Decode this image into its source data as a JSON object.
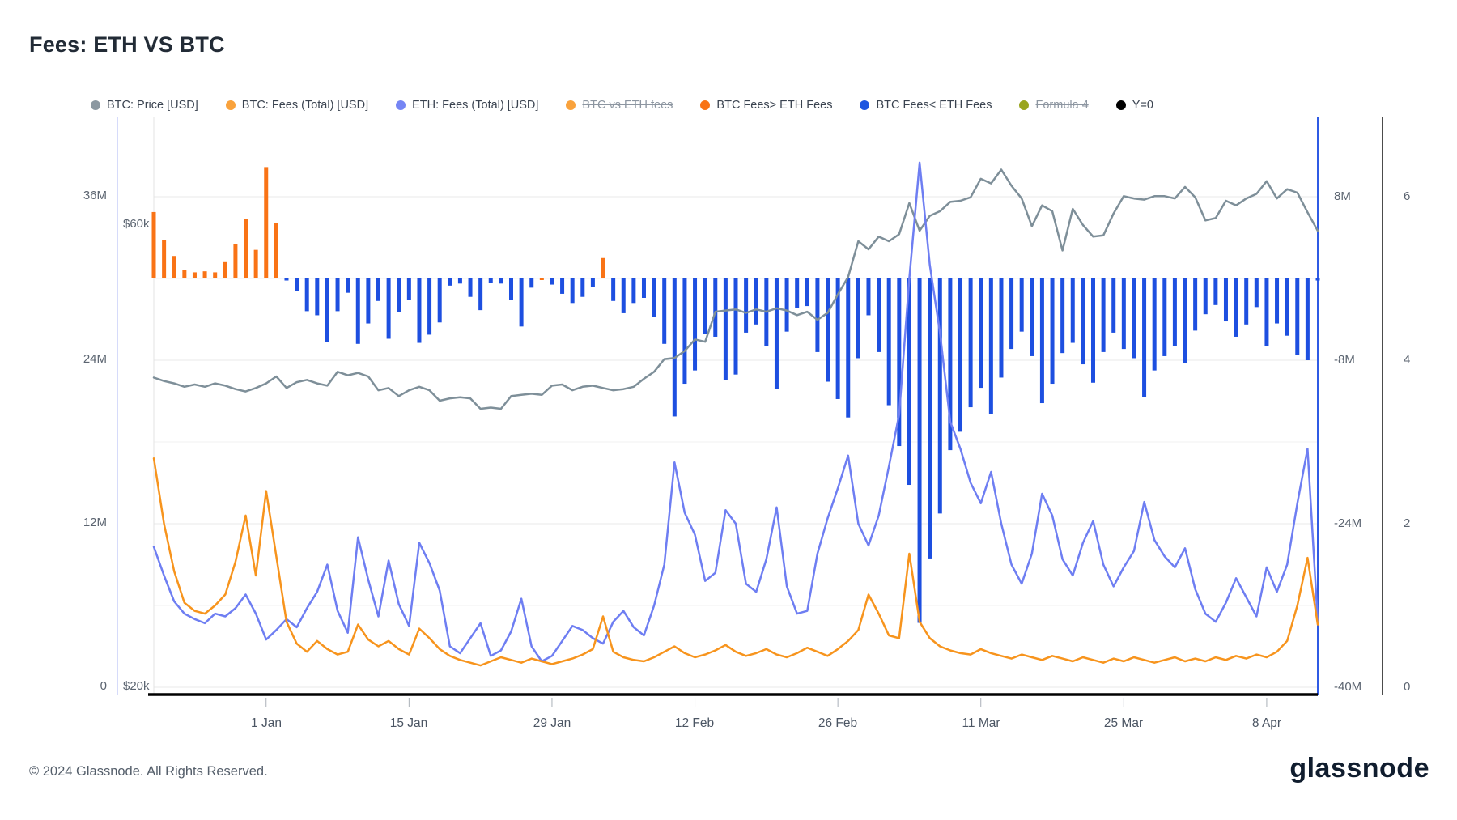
{
  "header": {
    "title": "Fees: ETH VS BTC"
  },
  "legend": [
    {
      "label": "BTC: Price [USD]",
      "color": "#8b98a1",
      "struck": false
    },
    {
      "label": "BTC: Fees (Total) [USD]",
      "color": "#f9a23c",
      "struck": false
    },
    {
      "label": "ETH: Fees (Total) [USD]",
      "color": "#7585f4",
      "struck": false
    },
    {
      "label": "BTC vs ETH fees",
      "color": "#f9a23c",
      "struck": true
    },
    {
      "label": "BTC Fees> ETH Fees",
      "color": "#f97316",
      "struck": false
    },
    {
      "label": "BTC Fees< ETH Fees",
      "color": "#1d55e0",
      "struck": false
    },
    {
      "label": "Formula 4",
      "color": "#9aa51f",
      "struck": true
    },
    {
      "label": "Y=0",
      "color": "#000000",
      "struck": false
    }
  ],
  "axes": {
    "left_fees": [
      "36M",
      "24M",
      "12M",
      "0"
    ],
    "left_price": [
      "$60k",
      "$20k"
    ],
    "right_m": [
      "8M",
      "-8M",
      "-24M",
      "-40M"
    ],
    "right_count": [
      "6",
      "4",
      "2",
      "0"
    ],
    "x_ticks": [
      "1 Jan",
      "15 Jan",
      "29 Jan",
      "12 Feb",
      "26 Feb",
      "11 Mar",
      "25 Mar",
      "8 Apr"
    ]
  },
  "footer": {
    "copyright": "© 2024 Glassnode. All Rights Reserved.",
    "brand": "glassnode"
  },
  "chart_data": {
    "type": "mixed",
    "title": "Fees: ETH VS BTC",
    "grid": true,
    "legend_position": "top",
    "axis_ranges": {
      "left_fees_usd_m": [
        0,
        42
      ],
      "left_price_usd_k": [
        20,
        69
      ],
      "right_diff_usd_m": [
        -40,
        16
      ],
      "right_count": [
        0,
        6
      ]
    },
    "series_meta": [
      {
        "name": "BTC: Price [USD]",
        "type": "line",
        "axis": "left_price_usd_k",
        "color": "#7e8f99"
      },
      {
        "name": "BTC: Fees (Total) [USD]",
        "type": "line",
        "axis": "left_fees_usd_m",
        "color": "#f7941d"
      },
      {
        "name": "ETH: Fees (Total) [USD]",
        "type": "line",
        "axis": "left_fees_usd_m",
        "color": "#6e7ef2"
      },
      {
        "name": "BTC Fees> ETH Fees",
        "type": "bar",
        "axis": "right_diff_usd_m",
        "color": "#f97316",
        "rule": "btc_fees - eth_fees when positive"
      },
      {
        "name": "BTC Fees< ETH Fees",
        "type": "bar",
        "axis": "right_diff_usd_m",
        "color": "#1d4fe0",
        "rule": "btc_fees - eth_fees when negative"
      },
      {
        "name": "Y=0",
        "type": "hline",
        "value": 0,
        "color": "#000000"
      }
    ],
    "dates": [
      "21 Dec",
      "22 Dec",
      "23 Dec",
      "24 Dec",
      "25 Dec",
      "26 Dec",
      "27 Dec",
      "28 Dec",
      "29 Dec",
      "30 Dec",
      "31 Dec",
      "1 Jan",
      "2 Jan",
      "3 Jan",
      "4 Jan",
      "5 Jan",
      "6 Jan",
      "7 Jan",
      "8 Jan",
      "9 Jan",
      "10 Jan",
      "11 Jan",
      "12 Jan",
      "13 Jan",
      "14 Jan",
      "15 Jan",
      "16 Jan",
      "17 Jan",
      "18 Jan",
      "19 Jan",
      "20 Jan",
      "21 Jan",
      "22 Jan",
      "23 Jan",
      "24 Jan",
      "25 Jan",
      "26 Jan",
      "27 Jan",
      "28 Jan",
      "29 Jan",
      "30 Jan",
      "31 Jan",
      "1 Feb",
      "2 Feb",
      "3 Feb",
      "4 Feb",
      "5 Feb",
      "6 Feb",
      "7 Feb",
      "8 Feb",
      "9 Feb",
      "10 Feb",
      "11 Feb",
      "12 Feb",
      "13 Feb",
      "14 Feb",
      "15 Feb",
      "16 Feb",
      "17 Feb",
      "18 Feb",
      "19 Feb",
      "20 Feb",
      "21 Feb",
      "22 Feb",
      "23 Feb",
      "24 Feb",
      "25 Feb",
      "26 Feb",
      "27 Feb",
      "28 Feb",
      "29 Feb",
      "1 Mar",
      "2 Mar",
      "3 Mar",
      "4 Mar",
      "5 Mar",
      "6 Mar",
      "7 Mar",
      "8 Mar",
      "9 Mar",
      "10 Mar",
      "11 Mar",
      "12 Mar",
      "13 Mar",
      "14 Mar",
      "15 Mar",
      "16 Mar",
      "17 Mar",
      "18 Mar",
      "19 Mar",
      "20 Mar",
      "21 Mar",
      "22 Mar",
      "23 Mar",
      "24 Mar",
      "25 Mar",
      "26 Mar",
      "27 Mar",
      "28 Mar",
      "29 Mar",
      "30 Mar",
      "31 Mar",
      "1 Apr",
      "2 Apr",
      "3 Apr",
      "4 Apr",
      "5 Apr",
      "6 Apr",
      "7 Apr",
      "8 Apr",
      "9 Apr",
      "10 Apr",
      "11 Apr",
      "12 Apr",
      "13 Apr"
    ],
    "btc_price_usd_k": [
      46.8,
      46.5,
      46.3,
      46.0,
      46.2,
      46.0,
      46.3,
      46.1,
      45.8,
      45.6,
      45.9,
      46.3,
      46.9,
      45.9,
      46.4,
      46.6,
      46.3,
      46.1,
      47.3,
      47.0,
      47.2,
      46.9,
      45.7,
      45.9,
      45.2,
      45.7,
      46.0,
      45.7,
      44.8,
      45.0,
      45.1,
      45.0,
      44.1,
      44.2,
      44.1,
      45.2,
      45.3,
      45.4,
      45.3,
      46.1,
      46.2,
      45.7,
      46.0,
      46.1,
      45.9,
      45.7,
      45.8,
      46.0,
      46.7,
      47.3,
      48.4,
      48.5,
      49.1,
      50.1,
      49.9,
      52.5,
      52.6,
      52.7,
      52.4,
      52.7,
      52.5,
      52.8,
      52.6,
      52.2,
      52.5,
      51.8,
      52.4,
      54.0,
      55.5,
      58.6,
      57.9,
      59.0,
      58.6,
      59.2,
      61.9,
      59.5,
      60.8,
      61.2,
      62.0,
      62.1,
      62.4,
      64.0,
      63.6,
      64.8,
      63.4,
      62.3,
      59.9,
      61.7,
      61.2,
      57.8,
      61.4,
      60.0,
      59.0,
      59.1,
      61.0,
      62.5,
      62.3,
      62.2,
      62.5,
      62.5,
      62.3,
      63.3,
      62.4,
      60.4,
      60.6,
      62.1,
      61.7,
      62.3,
      62.7,
      63.8,
      62.3,
      63.1,
      62.8,
      61.1,
      59.5
    ],
    "btc_fees_usd_m": [
      16.8,
      12.0,
      8.5,
      6.2,
      5.6,
      5.4,
      6.0,
      6.8,
      9.2,
      12.6,
      8.2,
      14.4,
      9.6,
      4.8,
      3.2,
      2.6,
      3.4,
      2.8,
      2.4,
      2.6,
      4.6,
      3.5,
      3.0,
      3.4,
      2.8,
      2.4,
      4.3,
      3.6,
      2.8,
      2.3,
      2.0,
      1.8,
      1.6,
      1.9,
      2.2,
      2.0,
      1.8,
      2.1,
      1.9,
      1.7,
      1.9,
      2.1,
      2.4,
      2.8,
      5.2,
      2.6,
      2.2,
      2.0,
      1.9,
      2.2,
      2.6,
      3.0,
      2.5,
      2.2,
      2.4,
      2.7,
      3.1,
      2.6,
      2.3,
      2.5,
      2.8,
      2.4,
      2.2,
      2.5,
      2.9,
      2.6,
      2.3,
      2.8,
      3.4,
      4.2,
      6.8,
      5.4,
      3.8,
      3.6,
      9.8,
      4.8,
      3.6,
      3.0,
      2.7,
      2.5,
      2.4,
      2.8,
      2.5,
      2.3,
      2.1,
      2.4,
      2.2,
      2.0,
      2.3,
      2.1,
      1.9,
      2.2,
      2.0,
      1.8,
      2.1,
      1.9,
      2.2,
      2.0,
      1.8,
      2.0,
      2.2,
      1.9,
      2.1,
      1.9,
      2.2,
      2.0,
      2.3,
      2.1,
      2.4,
      2.2,
      2.6,
      3.4,
      6.0,
      9.5,
      4.6
    ],
    "eth_fees_usd_m": [
      10.3,
      8.2,
      6.3,
      5.4,
      5.0,
      4.7,
      5.4,
      5.2,
      5.8,
      6.8,
      5.4,
      3.5,
      4.2,
      5.0,
      4.4,
      5.8,
      7.0,
      9.0,
      5.6,
      4.0,
      11.0,
      7.9,
      5.2,
      9.3,
      6.1,
      4.5,
      10.6,
      9.1,
      7.1,
      3.0,
      2.5,
      3.6,
      4.7,
      2.3,
      2.7,
      4.1,
      6.5,
      3.0,
      1.9,
      2.3,
      3.4,
      4.5,
      4.2,
      3.6,
      3.2,
      4.8,
      5.6,
      4.4,
      3.8,
      6.0,
      9.0,
      16.5,
      12.8,
      11.2,
      7.8,
      8.4,
      13.0,
      12.0,
      7.6,
      7.0,
      9.4,
      13.2,
      7.4,
      5.4,
      5.6,
      9.8,
      12.4,
      14.6,
      17.0,
      12.0,
      10.4,
      12.6,
      16.2,
      20.0,
      30.0,
      38.5,
      31.0,
      26.0,
      19.5,
      17.5,
      15.0,
      13.5,
      15.8,
      12.0,
      9.0,
      7.6,
      9.8,
      14.2,
      12.6,
      9.4,
      8.2,
      10.6,
      12.2,
      9.0,
      7.4,
      8.8,
      10.0,
      13.6,
      10.8,
      9.6,
      8.8,
      10.2,
      7.2,
      5.4,
      4.8,
      6.2,
      8.0,
      6.6,
      5.2,
      8.8,
      7.0,
      9.0,
      13.5,
      17.5,
      4.8
    ]
  }
}
